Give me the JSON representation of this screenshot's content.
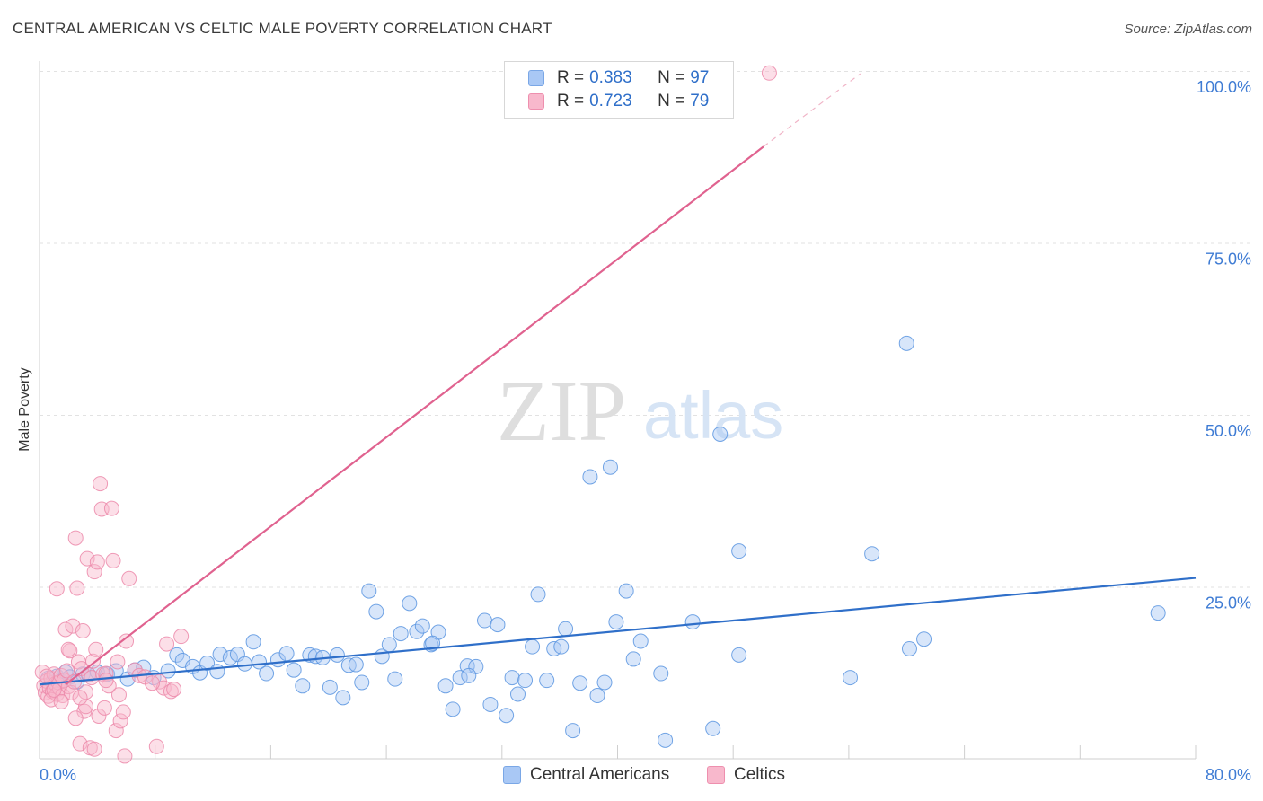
{
  "header": {
    "title": "CENTRAL AMERICAN VS CELTIC MALE POVERTY CORRELATION CHART",
    "source": "Source: ZipAtlas.com"
  },
  "watermark": {
    "zip": "ZIP",
    "atlas": "atlas"
  },
  "legend": {
    "rows": [
      {
        "r_label": "R = ",
        "r_value": "0.383",
        "n_label": "N = ",
        "n_value": "97",
        "color": "#a9c8f5"
      },
      {
        "r_label": "R = ",
        "r_value": "0.723",
        "n_label": "N = ",
        "n_value": "79",
        "color": "#f8b8cc"
      }
    ],
    "series_names": [
      "Central Americans",
      "Celtics"
    ]
  },
  "chart_data": {
    "type": "scatter",
    "title": "CENTRAL AMERICAN VS CELTIC MALE POVERTY CORRELATION CHART",
    "xlabel": "",
    "ylabel": "Male Poverty",
    "xlim": [
      0,
      80
    ],
    "ylim": [
      0,
      100
    ],
    "x_tick_labels": [
      "0.0%",
      "80.0%"
    ],
    "y_tick_values": [
      25,
      50,
      75,
      100
    ],
    "y_tick_labels": [
      "25.0%",
      "50.0%",
      "75.0%",
      "100.0%"
    ],
    "colors": {
      "blue": "#2f6fc9",
      "blue_fill": "#a9c8f5",
      "pink": "#e0628f",
      "pink_fill": "#f8b8cc",
      "grid": "#e2e2e2"
    },
    "series": [
      {
        "name": "Central Americans",
        "r": 0.383,
        "n": 97,
        "trend": {
          "x": [
            0,
            80
          ],
          "y": [
            10.8,
            26.3
          ]
        },
        "points": [
          [
            0.6,
            11.7
          ],
          [
            0.9,
            11.1
          ],
          [
            1.2,
            12.0
          ],
          [
            1.5,
            11.3
          ],
          [
            1.8,
            12.6
          ],
          [
            2.1,
            11.9
          ],
          [
            2.6,
            11.2
          ],
          [
            3.0,
            12.3
          ],
          [
            3.4,
            12.2
          ],
          [
            4.0,
            12.6
          ],
          [
            4.7,
            12.3
          ],
          [
            5.3,
            12.8
          ],
          [
            6.1,
            11.6
          ],
          [
            6.6,
            12.9
          ],
          [
            7.2,
            13.3
          ],
          [
            7.9,
            11.8
          ],
          [
            8.9,
            12.8
          ],
          [
            9.5,
            15.1
          ],
          [
            9.9,
            14.3
          ],
          [
            10.6,
            13.4
          ],
          [
            11.1,
            12.5
          ],
          [
            11.6,
            13.9
          ],
          [
            12.3,
            12.7
          ],
          [
            12.5,
            15.2
          ],
          [
            13.2,
            14.7
          ],
          [
            13.7,
            15.2
          ],
          [
            14.2,
            13.8
          ],
          [
            14.8,
            17.0
          ],
          [
            15.2,
            14.1
          ],
          [
            15.7,
            12.4
          ],
          [
            16.5,
            14.4
          ],
          [
            17.1,
            15.3
          ],
          [
            17.6,
            12.9
          ],
          [
            18.2,
            10.6
          ],
          [
            18.7,
            15.1
          ],
          [
            19.1,
            14.9
          ],
          [
            19.6,
            14.7
          ],
          [
            20.1,
            10.4
          ],
          [
            20.6,
            15.1
          ],
          [
            21.0,
            8.9
          ],
          [
            21.4,
            13.6
          ],
          [
            21.9,
            13.7
          ],
          [
            22.3,
            11.1
          ],
          [
            22.8,
            24.4
          ],
          [
            23.3,
            21.4
          ],
          [
            23.7,
            14.9
          ],
          [
            24.2,
            16.6
          ],
          [
            24.6,
            11.6
          ],
          [
            25.0,
            18.2
          ],
          [
            25.6,
            22.6
          ],
          [
            26.1,
            18.5
          ],
          [
            26.5,
            19.3
          ],
          [
            27.1,
            16.6
          ],
          [
            27.6,
            18.4
          ],
          [
            28.1,
            10.6
          ],
          [
            28.6,
            7.2
          ],
          [
            29.1,
            11.8
          ],
          [
            29.6,
            13.5
          ],
          [
            30.2,
            13.4
          ],
          [
            30.8,
            20.1
          ],
          [
            31.2,
            7.9
          ],
          [
            31.7,
            19.5
          ],
          [
            32.3,
            6.3
          ],
          [
            32.7,
            11.8
          ],
          [
            33.1,
            9.4
          ],
          [
            33.6,
            11.4
          ],
          [
            34.1,
            16.3
          ],
          [
            34.5,
            23.9
          ],
          [
            35.1,
            11.4
          ],
          [
            35.6,
            16.0
          ],
          [
            36.1,
            16.3
          ],
          [
            36.4,
            18.9
          ],
          [
            36.9,
            4.1
          ],
          [
            37.4,
            11.0
          ],
          [
            38.1,
            41.0
          ],
          [
            38.6,
            9.2
          ],
          [
            39.1,
            11.1
          ],
          [
            39.5,
            42.4
          ],
          [
            39.9,
            19.9
          ],
          [
            40.6,
            24.4
          ],
          [
            41.1,
            14.5
          ],
          [
            41.6,
            17.1
          ],
          [
            43.0,
            12.4
          ],
          [
            43.3,
            2.7
          ],
          [
            45.2,
            19.9
          ],
          [
            46.6,
            4.4
          ],
          [
            47.1,
            47.2
          ],
          [
            48.4,
            15.1
          ],
          [
            48.4,
            30.2
          ],
          [
            56.1,
            11.8
          ],
          [
            57.6,
            29.8
          ],
          [
            60.0,
            60.4
          ],
          [
            60.2,
            16.0
          ],
          [
            61.2,
            17.4
          ],
          [
            77.4,
            21.2
          ],
          [
            27.2,
            16.8
          ],
          [
            29.7,
            12.1
          ]
        ]
      },
      {
        "name": "Celtics",
        "r": 0.723,
        "n": 79,
        "trend": {
          "x": [
            1.8,
            50.1
          ],
          "y": [
            10.8,
            89.0
          ]
        },
        "trend_dashed": {
          "x": [
            50.1,
            56.8
          ],
          "y": [
            89.0,
            99.6
          ]
        },
        "points": [
          [
            0.2,
            12.6
          ],
          [
            0.3,
            10.6
          ],
          [
            0.4,
            9.6
          ],
          [
            0.5,
            11.3
          ],
          [
            0.6,
            9.1
          ],
          [
            0.7,
            10.3
          ],
          [
            0.8,
            11.7
          ],
          [
            0.9,
            9.8
          ],
          [
            1.0,
            12.3
          ],
          [
            1.1,
            10.9
          ],
          [
            1.2,
            9.4
          ],
          [
            1.3,
            11.1
          ],
          [
            1.4,
            10.2
          ],
          [
            1.5,
            12.1
          ],
          [
            1.6,
            9.2
          ],
          [
            1.7,
            11.4
          ],
          [
            1.8,
            18.8
          ],
          [
            1.9,
            12.8
          ],
          [
            2.0,
            10.5
          ],
          [
            2.1,
            15.7
          ],
          [
            2.2,
            9.6
          ],
          [
            2.3,
            19.3
          ],
          [
            2.4,
            11.2
          ],
          [
            2.5,
            32.1
          ],
          [
            2.6,
            24.8
          ],
          [
            2.7,
            14.1
          ],
          [
            2.8,
            2.2
          ],
          [
            2.9,
            13.1
          ],
          [
            3.0,
            18.6
          ],
          [
            3.1,
            6.9
          ],
          [
            3.2,
            9.7
          ],
          [
            3.3,
            29.1
          ],
          [
            3.4,
            12.2
          ],
          [
            3.5,
            1.6
          ],
          [
            3.6,
            11.8
          ],
          [
            3.7,
            14.2
          ],
          [
            3.8,
            27.2
          ],
          [
            3.9,
            15.9
          ],
          [
            4.0,
            28.6
          ],
          [
            4.1,
            6.2
          ],
          [
            4.2,
            40.0
          ],
          [
            4.3,
            36.3
          ],
          [
            4.4,
            12.3
          ],
          [
            4.5,
            7.4
          ],
          [
            4.6,
            12.4
          ],
          [
            4.8,
            10.6
          ],
          [
            5.0,
            36.4
          ],
          [
            5.1,
            28.8
          ],
          [
            5.3,
            4.1
          ],
          [
            5.4,
            14.1
          ],
          [
            5.5,
            9.3
          ],
          [
            5.6,
            5.5
          ],
          [
            5.8,
            6.8
          ],
          [
            6.0,
            17.1
          ],
          [
            6.2,
            26.2
          ],
          [
            6.6,
            12.9
          ],
          [
            6.9,
            12.1
          ],
          [
            7.3,
            11.9
          ],
          [
            8.1,
            1.8
          ],
          [
            8.3,
            11.2
          ],
          [
            8.6,
            10.3
          ],
          [
            8.8,
            16.7
          ],
          [
            9.1,
            9.8
          ],
          [
            9.3,
            10.1
          ],
          [
            9.8,
            17.8
          ],
          [
            1.2,
            24.7
          ],
          [
            2.0,
            15.9
          ],
          [
            2.5,
            5.9
          ],
          [
            0.8,
            8.6
          ],
          [
            1.5,
            8.3
          ],
          [
            3.2,
            7.6
          ],
          [
            3.8,
            1.4
          ],
          [
            4.6,
            11.4
          ],
          [
            5.9,
            0.4
          ],
          [
            7.8,
            11.0
          ],
          [
            50.5,
            99.7
          ],
          [
            2.8,
            8.9
          ],
          [
            1.0,
            10.0
          ],
          [
            0.5,
            12.0
          ]
        ]
      }
    ]
  }
}
